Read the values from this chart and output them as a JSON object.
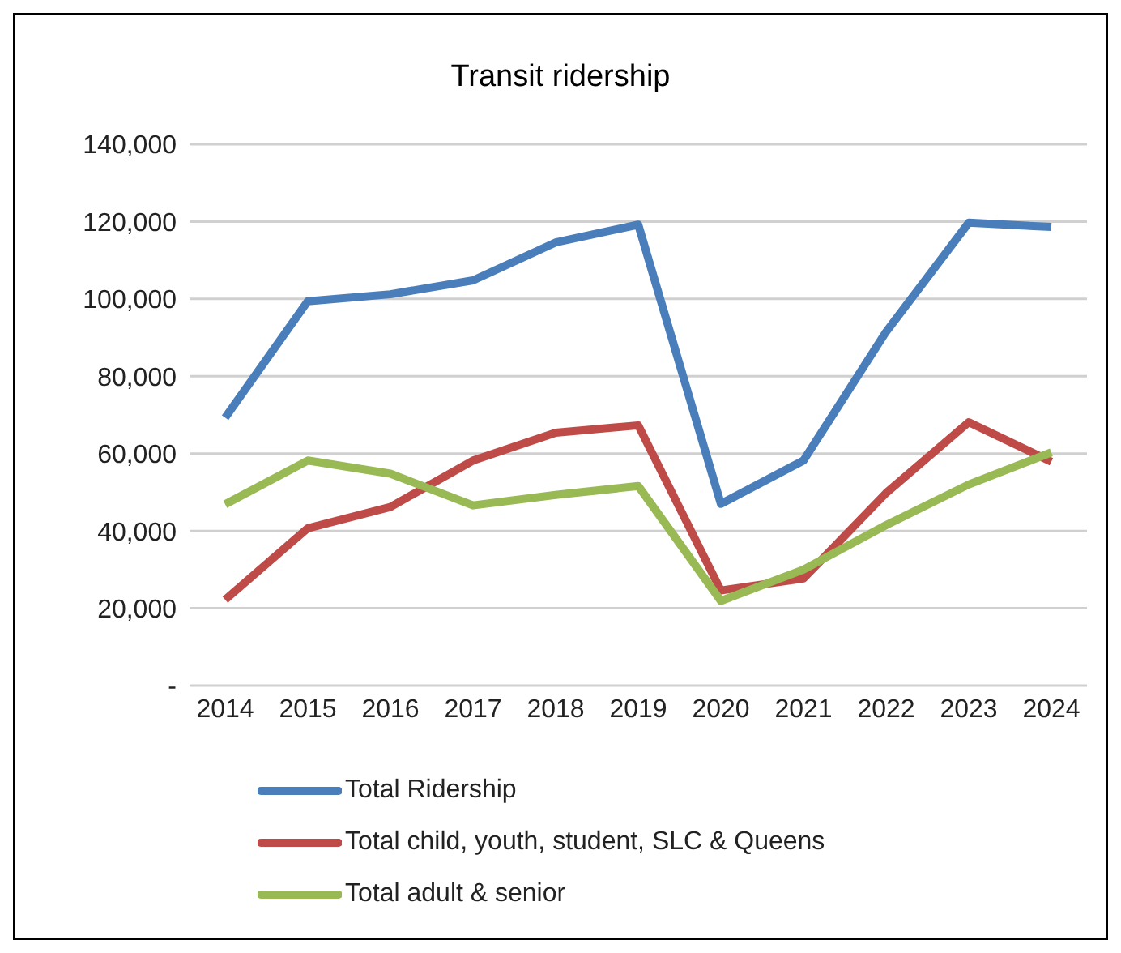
{
  "chart_data": {
    "type": "line",
    "title": "Transit ridership",
    "categories": [
      "2014",
      "2015",
      "2016",
      "2017",
      "2018",
      "2019",
      "2020",
      "2021",
      "2022",
      "2023",
      "2024"
    ],
    "series": [
      {
        "name": "Total Ridership",
        "color": "#4a7ebb",
        "values": [
          69300,
          99400,
          101200,
          104800,
          114600,
          119200,
          47000,
          58200,
          91500,
          119700,
          118600
        ]
      },
      {
        "name": "Total child, youth, student, SLC & Queens",
        "color": "#be4b48",
        "values": [
          22200,
          40700,
          46200,
          58200,
          65400,
          67300,
          24600,
          27700,
          49800,
          68100,
          57900
        ]
      },
      {
        "name": "Total adult & senior",
        "color": "#98b954",
        "values": [
          46900,
          58200,
          54800,
          46600,
          49300,
          51600,
          21900,
          30000,
          41500,
          52000,
          60300
        ]
      }
    ],
    "ylim": [
      0,
      140000
    ],
    "yticks": [
      {
        "value": 0,
        "label": "-"
      },
      {
        "value": 20000,
        "label": "20,000"
      },
      {
        "value": 40000,
        "label": "40,000"
      },
      {
        "value": 60000,
        "label": "60,000"
      },
      {
        "value": 80000,
        "label": "80,000"
      },
      {
        "value": 100000,
        "label": "100,000"
      },
      {
        "value": 120000,
        "label": "120,000"
      },
      {
        "value": 140000,
        "label": "140,000"
      }
    ],
    "grid": "y",
    "legend": "bottom",
    "marker": "none",
    "line_style": "solid"
  }
}
